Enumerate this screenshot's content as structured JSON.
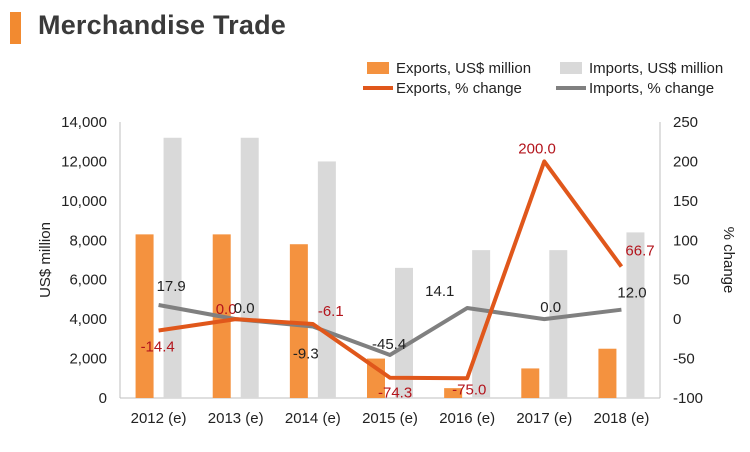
{
  "title": "Merchandise Trade",
  "colors": {
    "accent": "#f28a30",
    "exports_bar": "#f4923f",
    "imports_bar": "#d9d9d9",
    "exports_line": "#e0571b",
    "imports_line": "#808080",
    "exports_label": "#b3141c",
    "imports_label": "#222222"
  },
  "chart_data": {
    "type": "bar+line",
    "title": "Merchandise Trade",
    "categories": [
      "2012 (e)",
      "2013 (e)",
      "2014 (e)",
      "2015 (e)",
      "2016 (e)",
      "2017 (e)",
      "2018 (e)"
    ],
    "ylabel_left": "US$ million",
    "ylabel_right": "% change",
    "ylim_left": [
      0,
      14000
    ],
    "yticks_left": [
      "0",
      "2,000",
      "4,000",
      "6,000",
      "8,000",
      "10,000",
      "12,000",
      "14,000"
    ],
    "ylim_right": [
      -100,
      250
    ],
    "yticks_right": [
      "-100",
      "-50",
      "0",
      "50",
      "100",
      "150",
      "200",
      "250"
    ],
    "grid": false,
    "legend": {
      "placement": "top-right",
      "items": [
        "Exports, US$ million",
        "Imports, US$ million",
        "Exports, % change",
        "Imports, % change"
      ]
    },
    "bar_series": [
      {
        "name": "Exports, US$ million",
        "values": [
          8300,
          8300,
          7800,
          2000,
          500,
          1500,
          2500
        ]
      },
      {
        "name": "Imports, US$ million",
        "values": [
          13200,
          13200,
          12000,
          6600,
          7500,
          7500,
          8400
        ]
      }
    ],
    "line_series": [
      {
        "name": "Exports, % change",
        "values": [
          -14.4,
          0.0,
          -6.1,
          -74.3,
          -75.0,
          200.0,
          66.7
        ],
        "labels": [
          "-14.4",
          "0.0",
          "-6.1",
          "-74.3",
          "-75.0",
          "200.0",
          "66.7"
        ]
      },
      {
        "name": "Imports, % change",
        "values": [
          17.9,
          0.0,
          -9.3,
          -45.4,
          14.1,
          0.0,
          12.0
        ],
        "labels": [
          "17.9",
          "0.0",
          "-9.3",
          "-45.4",
          "14.1",
          "0.0",
          "12.0"
        ]
      }
    ]
  }
}
